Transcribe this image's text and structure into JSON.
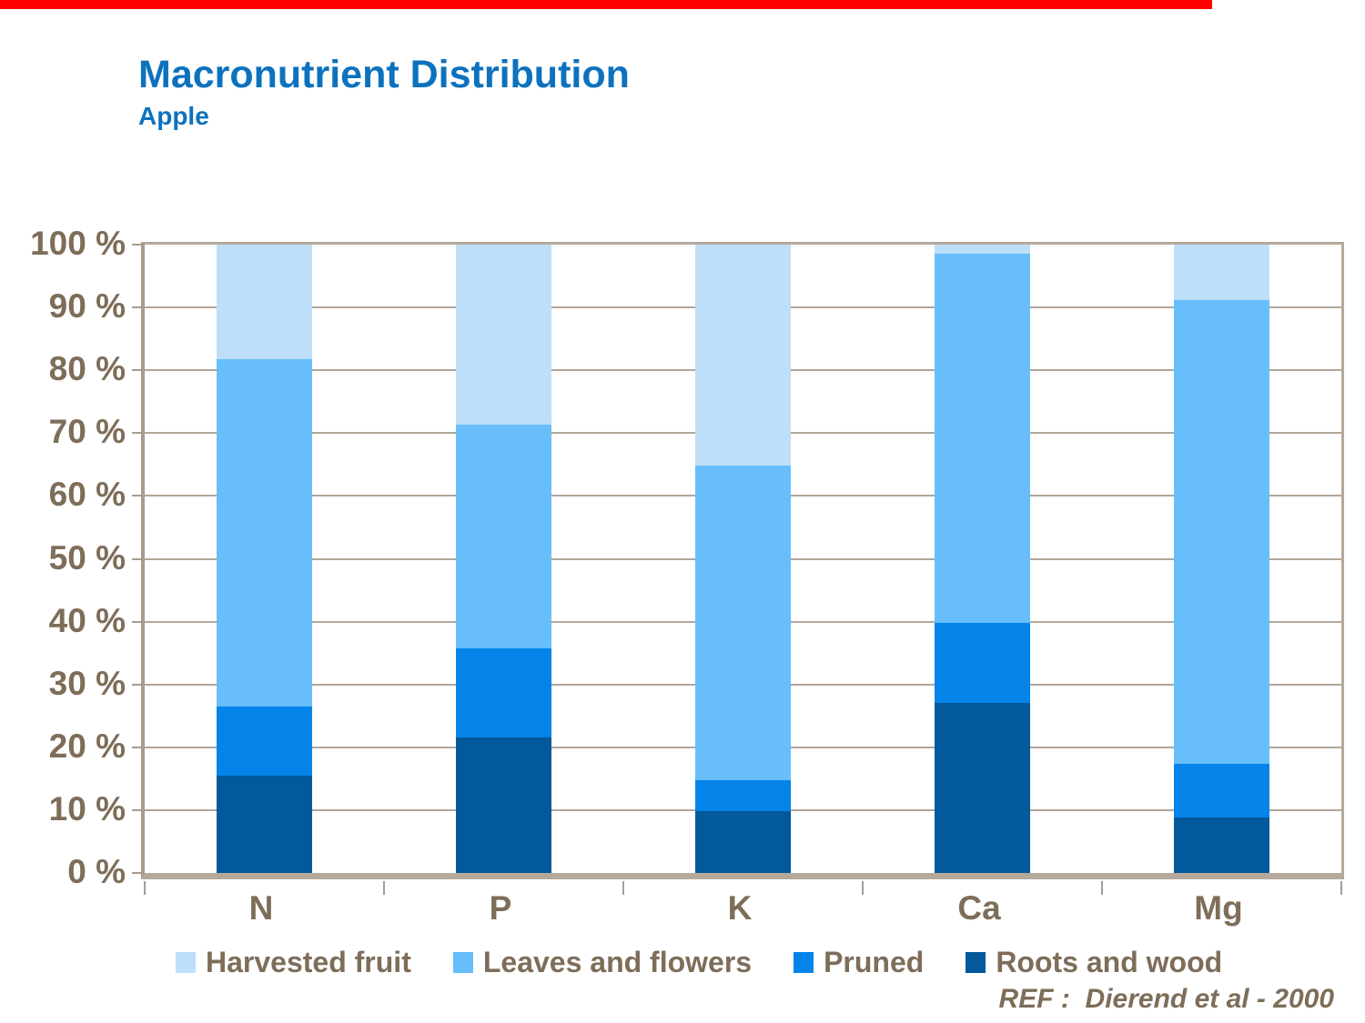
{
  "page": {
    "accent_bar_color": "#ff0000",
    "accent_bar_width": 1332,
    "title_color": "#0d72be",
    "text_color": "#7e6d59"
  },
  "header": {
    "title": "Macronutrient Distribution",
    "subtitle": "Apple"
  },
  "chart_data": {
    "type": "bar",
    "variant": "stacked-percent",
    "title": "Macronutrient Distribution",
    "subtitle": "Apple",
    "categories": [
      "N",
      "P",
      "K",
      "Ca",
      "Mg"
    ],
    "series": [
      {
        "name": "Roots and wood",
        "color": "#02599c",
        "values": [
          15.5,
          21.5,
          9.8,
          27.0,
          8.8
        ]
      },
      {
        "name": "Pruned",
        "color": "#0484e8",
        "values": [
          11.0,
          14.3,
          5.0,
          12.8,
          8.6
        ]
      },
      {
        "name": "Leaves and flowers",
        "color": "#67befb",
        "values": [
          55.2,
          35.6,
          50.0,
          58.8,
          73.8
        ]
      },
      {
        "name": "Harvested fruit",
        "color": "#bddffa",
        "values": [
          18.3,
          28.6,
          35.2,
          1.4,
          8.8
        ]
      }
    ],
    "ylim": [
      0,
      100
    ],
    "ytick_labels": [
      "0 %",
      "10 %",
      "20 %",
      "30 %",
      "40 %",
      "50 %",
      "60 %",
      "70 %",
      "80 %",
      "90 %",
      "100 %"
    ],
    "grid": true,
    "gridline_color": "#b2a698",
    "legend_position": "bottom",
    "legend": [
      {
        "label": "Harvested fruit",
        "color": "#bddffa"
      },
      {
        "label": "Leaves and flowers",
        "color": "#67befb"
      },
      {
        "label": "Pruned",
        "color": "#0484e8"
      },
      {
        "label": "Roots and wood",
        "color": "#02599c"
      }
    ]
  },
  "footer": {
    "reference": "REF :  Dierend et al - 2000"
  }
}
